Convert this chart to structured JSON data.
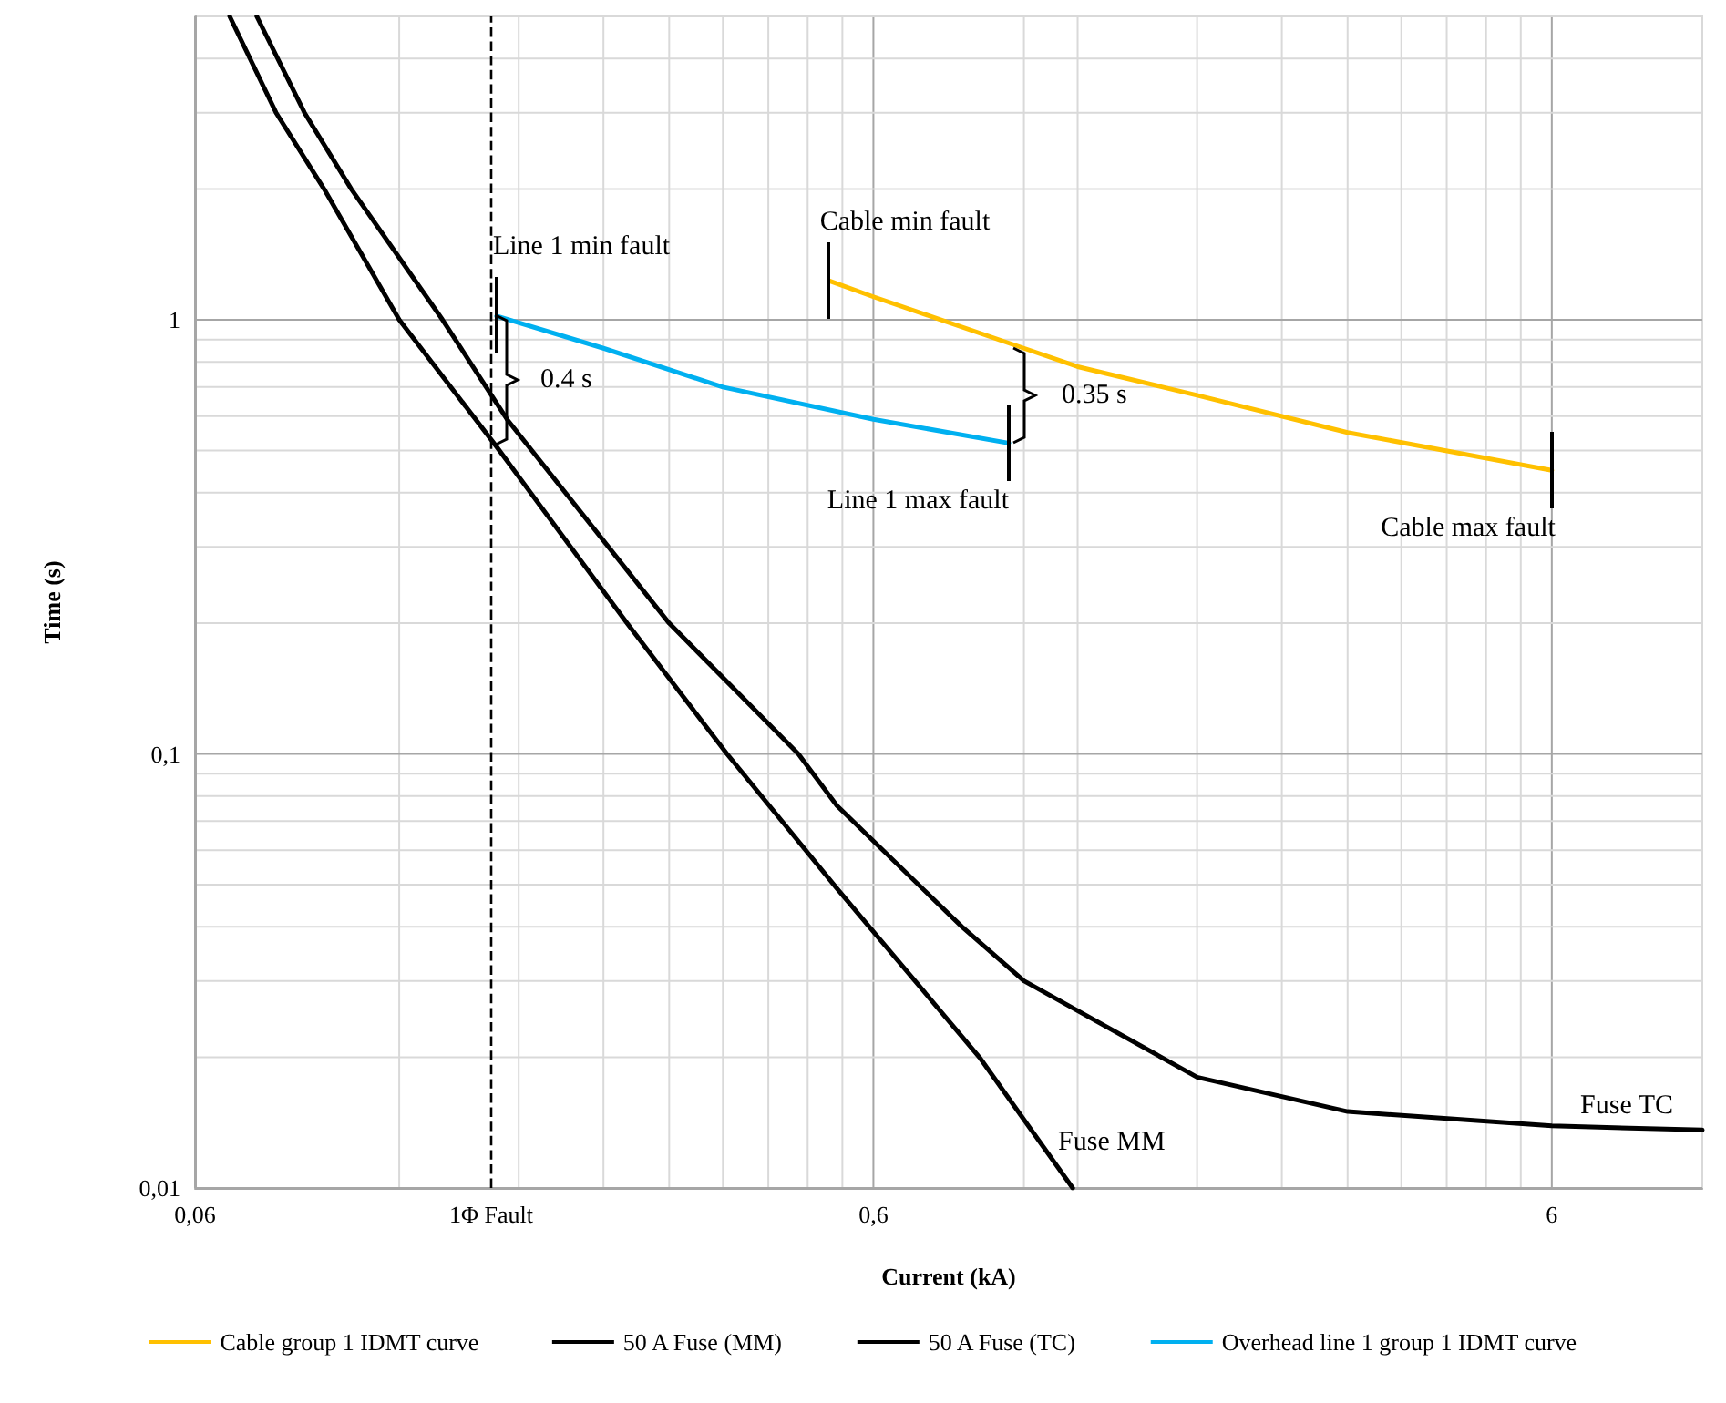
{
  "chart_data": {
    "type": "line",
    "xlabel": "Current (kA)",
    "ylabel": "Time (s)",
    "log": "xy",
    "xlim": [
      0.06,
      10
    ],
    "ylim": [
      0.01,
      5
    ],
    "xticks": [
      {
        "value": 0.06,
        "label": "0,06"
      },
      {
        "value": 0.12,
        "label": null
      },
      {
        "value": 0.18,
        "label": null
      },
      {
        "value": 0.24,
        "label": null
      },
      {
        "value": 0.3,
        "label": null
      },
      {
        "value": 0.36,
        "label": null
      },
      {
        "value": 0.42,
        "label": null
      },
      {
        "value": 0.48,
        "label": null
      },
      {
        "value": 0.54,
        "label": null
      },
      {
        "value": 0.6,
        "label": "0,6"
      },
      {
        "value": 1,
        "label": null
      },
      {
        "value": 1.2,
        "label": null
      },
      {
        "value": 1.8,
        "label": null
      },
      {
        "value": 2.4,
        "label": null
      },
      {
        "value": 3,
        "label": null
      },
      {
        "value": 3.6,
        "label": null
      },
      {
        "value": 4.2,
        "label": null
      },
      {
        "value": 4.8,
        "label": null
      },
      {
        "value": 5.4,
        "label": null
      },
      {
        "value": 6,
        "label": "6"
      }
    ],
    "yticks": [
      {
        "value": 0.01,
        "label": "0,01"
      },
      {
        "value": 0.02,
        "label": null
      },
      {
        "value": 0.03,
        "label": null
      },
      {
        "value": 0.04,
        "label": null
      },
      {
        "value": 0.05,
        "label": null
      },
      {
        "value": 0.06,
        "label": null
      },
      {
        "value": 0.07,
        "label": null
      },
      {
        "value": 0.08,
        "label": null
      },
      {
        "value": 0.09,
        "label": null
      },
      {
        "value": 0.1,
        "label": "0,1"
      },
      {
        "value": 0.2,
        "label": null
      },
      {
        "value": 0.3,
        "label": null
      },
      {
        "value": 0.4,
        "label": null
      },
      {
        "value": 0.5,
        "label": null
      },
      {
        "value": 0.6,
        "label": null
      },
      {
        "value": 0.7,
        "label": null
      },
      {
        "value": 0.8,
        "label": null
      },
      {
        "value": 0.9,
        "label": null
      },
      {
        "value": 1,
        "label": "1"
      },
      {
        "value": 2,
        "label": null
      },
      {
        "value": 3,
        "label": null
      },
      {
        "value": 4,
        "label": null
      },
      {
        "value": 5,
        "label": null
      }
    ],
    "grid": true,
    "legend": "bottom",
    "marker": "none",
    "line_style": "solid",
    "series": [
      {
        "name": "Cable group 1 IDMT curve",
        "color": "#ffc000",
        "x": [
          0.516,
          0.6,
          1.0,
          1.2,
          1.8,
          3.0,
          6
        ],
        "values": [
          1.23,
          1.13,
          0.86,
          0.78,
          0.67,
          0.55,
          0.45
        ]
      },
      {
        "name": "50 A Fuse (MM)",
        "color": "#000000",
        "x": [
          0.0675,
          0.079,
          0.093,
          0.12,
          0.167,
          0.26,
          0.365,
          0.53,
          0.86,
          1.18
        ],
        "values": [
          5,
          3,
          2,
          1.0,
          0.51,
          0.2,
          0.1,
          0.049,
          0.02,
          0.01
        ]
      },
      {
        "name": "50 A Fuse (TC)",
        "color": "#000000",
        "x": [
          0.074,
          0.087,
          0.102,
          0.139,
          0.173,
          0.3,
          0.465,
          0.53,
          0.81,
          1.0,
          1.8,
          3.0,
          6,
          10
        ],
        "values": [
          5,
          3,
          2,
          1.0,
          0.59,
          0.2,
          0.1,
          0.076,
          0.04,
          0.03,
          0.018,
          0.015,
          0.0139,
          0.0136
        ]
      },
      {
        "name": "Overhead line 1 group 1 IDMT curve",
        "color": "#00b0f0",
        "x": [
          0.167,
          0.24,
          0.36,
          0.6,
          0.95
        ],
        "values": [
          1.02,
          0.86,
          0.7,
          0.59,
          0.52
        ]
      }
    ],
    "ref_lines": [
      {
        "axis": "x",
        "value": 0.164,
        "label": "1Φ Fault",
        "color": "#000000",
        "line_style": "dashed"
      }
    ],
    "annotations": [
      {
        "text": "Line 1 min fault",
        "x": 0.167,
        "y": 1.02
      },
      {
        "text": "Line 1 max fault",
        "x": 0.95,
        "y": 0.52
      },
      {
        "text": "Cable min fault",
        "x": 0.516,
        "y": 1.23
      },
      {
        "text": "Cable max fault",
        "x": 6,
        "y": 0.45
      },
      {
        "text": "0.4 s",
        "x": 0.167,
        "y": 1.02
      },
      {
        "text": "0.35 s",
        "x": 0.95,
        "y": 0.52
      },
      {
        "text": "Fuse MM",
        "x": 1.18,
        "y": 0.01
      },
      {
        "text": "Fuse TC",
        "x": 10,
        "y": 0.0136
      }
    ]
  }
}
